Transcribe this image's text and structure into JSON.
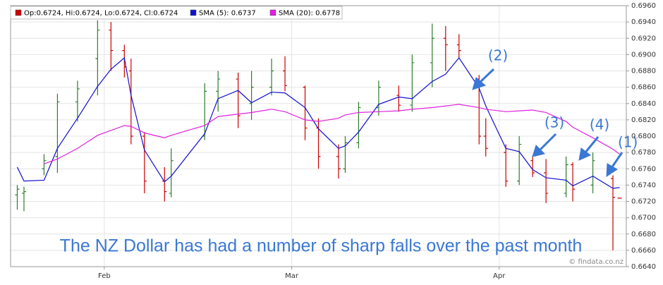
{
  "chart_data": {
    "type": "ohlc",
    "x": [
      -13,
      -12,
      -9,
      -7,
      -4,
      -1,
      1,
      3,
      4,
      6,
      9,
      10,
      15,
      17,
      20,
      22,
      25,
      27,
      30,
      32,
      35,
      36,
      38,
      41,
      44,
      46,
      49,
      51,
      53,
      56,
      57,
      60,
      62,
      64,
      66,
      69,
      70,
      73,
      76,
      77
    ],
    "ohlc": {
      "name": "Op:0.6724, Hi:0.6724, Lo:0.6724, Cl:0.6724",
      "color": "#cc0000",
      "up_color": "#2e7d2e",
      "down_color": "#cc0000",
      "open": [
        0.6728,
        0.673,
        0.676,
        0.6775,
        0.6842,
        0.6895,
        0.693,
        0.6905,
        0.688,
        0.68,
        0.6745,
        0.673,
        0.68,
        0.6855,
        0.687,
        0.684,
        0.686,
        0.688,
        0.686,
        0.681,
        0.6775,
        0.676,
        0.6792,
        0.6835,
        0.685,
        0.6838,
        0.689,
        0.692,
        0.6912,
        0.687,
        0.68,
        0.678,
        0.6745,
        0.677,
        0.6755,
        0.673,
        0.6765,
        0.674,
        0.6748,
        0.6724
      ],
      "high": [
        0.674,
        0.6738,
        0.6778,
        0.6852,
        0.6868,
        0.6942,
        0.694,
        0.6912,
        0.6895,
        0.6805,
        0.6762,
        0.6785,
        0.6865,
        0.688,
        0.6878,
        0.688,
        0.6895,
        0.6898,
        0.6862,
        0.6822,
        0.679,
        0.68,
        0.6842,
        0.6868,
        0.6862,
        0.69,
        0.6938,
        0.6935,
        0.6925,
        0.6875,
        0.6822,
        0.679,
        0.68,
        0.6775,
        0.6772,
        0.6775,
        0.6768,
        0.678,
        0.6752,
        0.6724
      ],
      "low": [
        0.671,
        0.6708,
        0.6752,
        0.6755,
        0.6818,
        0.685,
        0.688,
        0.6872,
        0.679,
        0.673,
        0.672,
        0.6725,
        0.6795,
        0.683,
        0.681,
        0.682,
        0.685,
        0.6855,
        0.6795,
        0.676,
        0.6748,
        0.6755,
        0.6785,
        0.6825,
        0.683,
        0.683,
        0.686,
        0.688,
        0.6895,
        0.679,
        0.6775,
        0.6738,
        0.674,
        0.675,
        0.6718,
        0.6725,
        0.672,
        0.673,
        0.666,
        0.6724
      ],
      "close": [
        0.6735,
        0.6732,
        0.677,
        0.6842,
        0.6858,
        0.693,
        0.6905,
        0.6885,
        0.68,
        0.6745,
        0.6732,
        0.677,
        0.6855,
        0.687,
        0.6825,
        0.686,
        0.688,
        0.6862,
        0.681,
        0.6775,
        0.676,
        0.6792,
        0.6835,
        0.686,
        0.6838,
        0.689,
        0.692,
        0.6912,
        0.6905,
        0.68,
        0.6785,
        0.6745,
        0.679,
        0.6755,
        0.673,
        0.6765,
        0.6735,
        0.677,
        0.6725,
        0.6724
      ]
    },
    "lines": [
      {
        "name": "SMA (5): 0.6737",
        "color": "#1010d0",
        "values": [
          0.6762,
          0.6745,
          0.6746,
          0.6785,
          0.6822,
          0.6861,
          0.6882,
          0.6896,
          0.685,
          0.6783,
          0.6744,
          0.6751,
          0.6803,
          0.6846,
          0.6856,
          0.6841,
          0.6854,
          0.6853,
          0.6835,
          0.6809,
          0.6785,
          0.6788,
          0.6805,
          0.6839,
          0.6848,
          0.6846,
          0.6867,
          0.6876,
          0.6896,
          0.6859,
          0.6837,
          0.6785,
          0.6781,
          0.6759,
          0.6749,
          0.6746,
          0.6739,
          0.6751,
          0.6736,
          0.6737
        ]
      },
      {
        "name": "SMA (20): 0.6778",
        "color": "#e020e0",
        "values": [
          null,
          null,
          0.6766,
          0.6772,
          0.6785,
          0.6801,
          0.6807,
          0.6813,
          0.6812,
          0.6804,
          0.6798,
          0.6801,
          0.6813,
          0.6824,
          0.6827,
          0.6829,
          0.6833,
          0.683,
          0.682,
          0.6818,
          0.6822,
          0.6826,
          0.6829,
          0.683,
          0.6831,
          0.6833,
          0.6835,
          0.6837,
          0.6839,
          0.6835,
          0.6833,
          0.683,
          0.6831,
          0.6832,
          0.6829,
          0.6818,
          0.6811,
          0.6798,
          0.6784,
          0.6778
        ]
      }
    ],
    "xlim": [
      -14,
      78
    ],
    "xticks": [
      {
        "value": 0,
        "label": "Feb"
      },
      {
        "value": 28,
        "label": "Mar"
      },
      {
        "value": 59,
        "label": "Apr"
      }
    ],
    "ylim": [
      0.664,
      0.696
    ],
    "yticks": [
      {
        "value": 0.664,
        "label": "0.6640"
      },
      {
        "value": 0.666,
        "label": "0.6660"
      },
      {
        "value": 0.668,
        "label": "0.6680"
      },
      {
        "value": 0.67,
        "label": "0.6700"
      },
      {
        "value": 0.672,
        "label": "0.6720"
      },
      {
        "value": 0.674,
        "label": "0.6740"
      },
      {
        "value": 0.676,
        "label": "0.6760"
      },
      {
        "value": 0.678,
        "label": "0.6780"
      },
      {
        "value": 0.68,
        "label": "0.6800"
      },
      {
        "value": 0.682,
        "label": "0.6820"
      },
      {
        "value": 0.684,
        "label": "0.6840"
      },
      {
        "value": 0.686,
        "label": "0.6860"
      },
      {
        "value": 0.688,
        "label": "0.6880"
      },
      {
        "value": 0.69,
        "label": "0.6900"
      },
      {
        "value": 0.692,
        "label": "0.6920"
      },
      {
        "value": 0.694,
        "label": "0.6940"
      },
      {
        "value": 0.696,
        "label": "0.6960"
      }
    ],
    "grid": true,
    "annotations": [
      "(2)",
      "(3)",
      "(4)",
      "(1)"
    ],
    "caption": "The NZ Dollar has had a number of sharp falls over the past month",
    "source": "© findata.co.nz"
  }
}
